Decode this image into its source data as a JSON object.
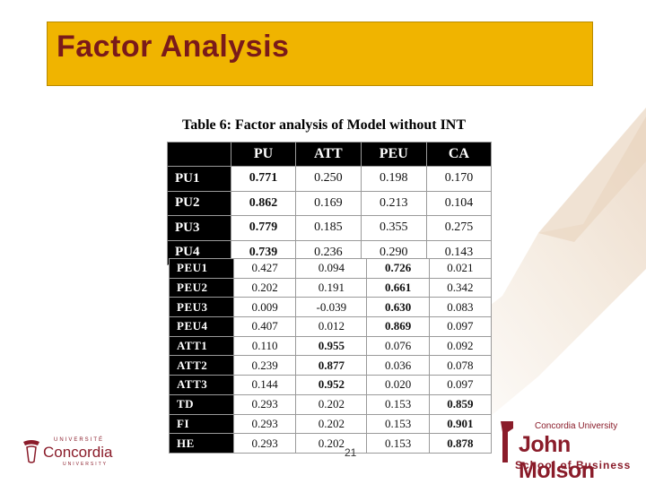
{
  "slide": {
    "title": "Factor Analysis",
    "page_number": "21"
  },
  "table": {
    "caption": "Table 6: Factor analysis of Model without INT",
    "columns": [
      "PU",
      "ATT",
      "PEU",
      "CA"
    ],
    "top_rows": [
      {
        "label": "PU1",
        "values": [
          "0.771",
          "0.250",
          "0.198",
          "0.170"
        ],
        "bold_index": 0
      },
      {
        "label": "PU2",
        "values": [
          "0.862",
          "0.169",
          "0.213",
          "0.104"
        ],
        "bold_index": 0
      },
      {
        "label": "PU3",
        "values": [
          "0.779",
          "0.185",
          "0.355",
          "0.275"
        ],
        "bold_index": 0
      },
      {
        "label": "PU4",
        "values": [
          "0.739",
          "0.236",
          "0.290",
          "0.143"
        ],
        "bold_index": 0
      }
    ],
    "bottom_rows": [
      {
        "label": "PEU1",
        "values": [
          "0.427",
          "0.094",
          "0.726",
          "0.021"
        ],
        "bold_index": 2
      },
      {
        "label": "PEU2",
        "values": [
          "0.202",
          "0.191",
          "0.661",
          "0.342"
        ],
        "bold_index": 2
      },
      {
        "label": "PEU3",
        "values": [
          "0.009",
          "-0.039",
          "0.630",
          "0.083"
        ],
        "bold_index": 2
      },
      {
        "label": "PEU4",
        "values": [
          "0.407",
          "0.012",
          "0.869",
          "0.097"
        ],
        "bold_index": 2
      },
      {
        "label": "ATT1",
        "values": [
          "0.110",
          "0.955",
          "0.076",
          "0.092"
        ],
        "bold_index": 1
      },
      {
        "label": "ATT2",
        "values": [
          "0.239",
          "0.877",
          "0.036",
          "0.078"
        ],
        "bold_index": 1
      },
      {
        "label": "ATT3",
        "values": [
          "0.144",
          "0.952",
          "0.020",
          "0.097"
        ],
        "bold_index": 1
      },
      {
        "label": "TD",
        "values": [
          "0.293",
          "0.202",
          "0.153",
          "0.859"
        ],
        "bold_index": 3
      },
      {
        "label": "FI",
        "values": [
          "0.293",
          "0.202",
          "0.153",
          "0.901"
        ],
        "bold_index": 3
      },
      {
        "label": "HE",
        "values": [
          "0.293",
          "0.202",
          "0.153",
          "0.878"
        ],
        "bold_index": 3
      }
    ]
  },
  "logos": {
    "left": {
      "top": "UNIVERSITÉ",
      "name": "Concordia",
      "bottom": "UNIVERSITY"
    },
    "right": {
      "top": "Concordia University",
      "name": "John Molson",
      "bottom": "School of Business"
    }
  },
  "colors": {
    "title_bar": "#f0b400",
    "title_text": "#7a1a1a",
    "brand": "#8a1c2a"
  }
}
